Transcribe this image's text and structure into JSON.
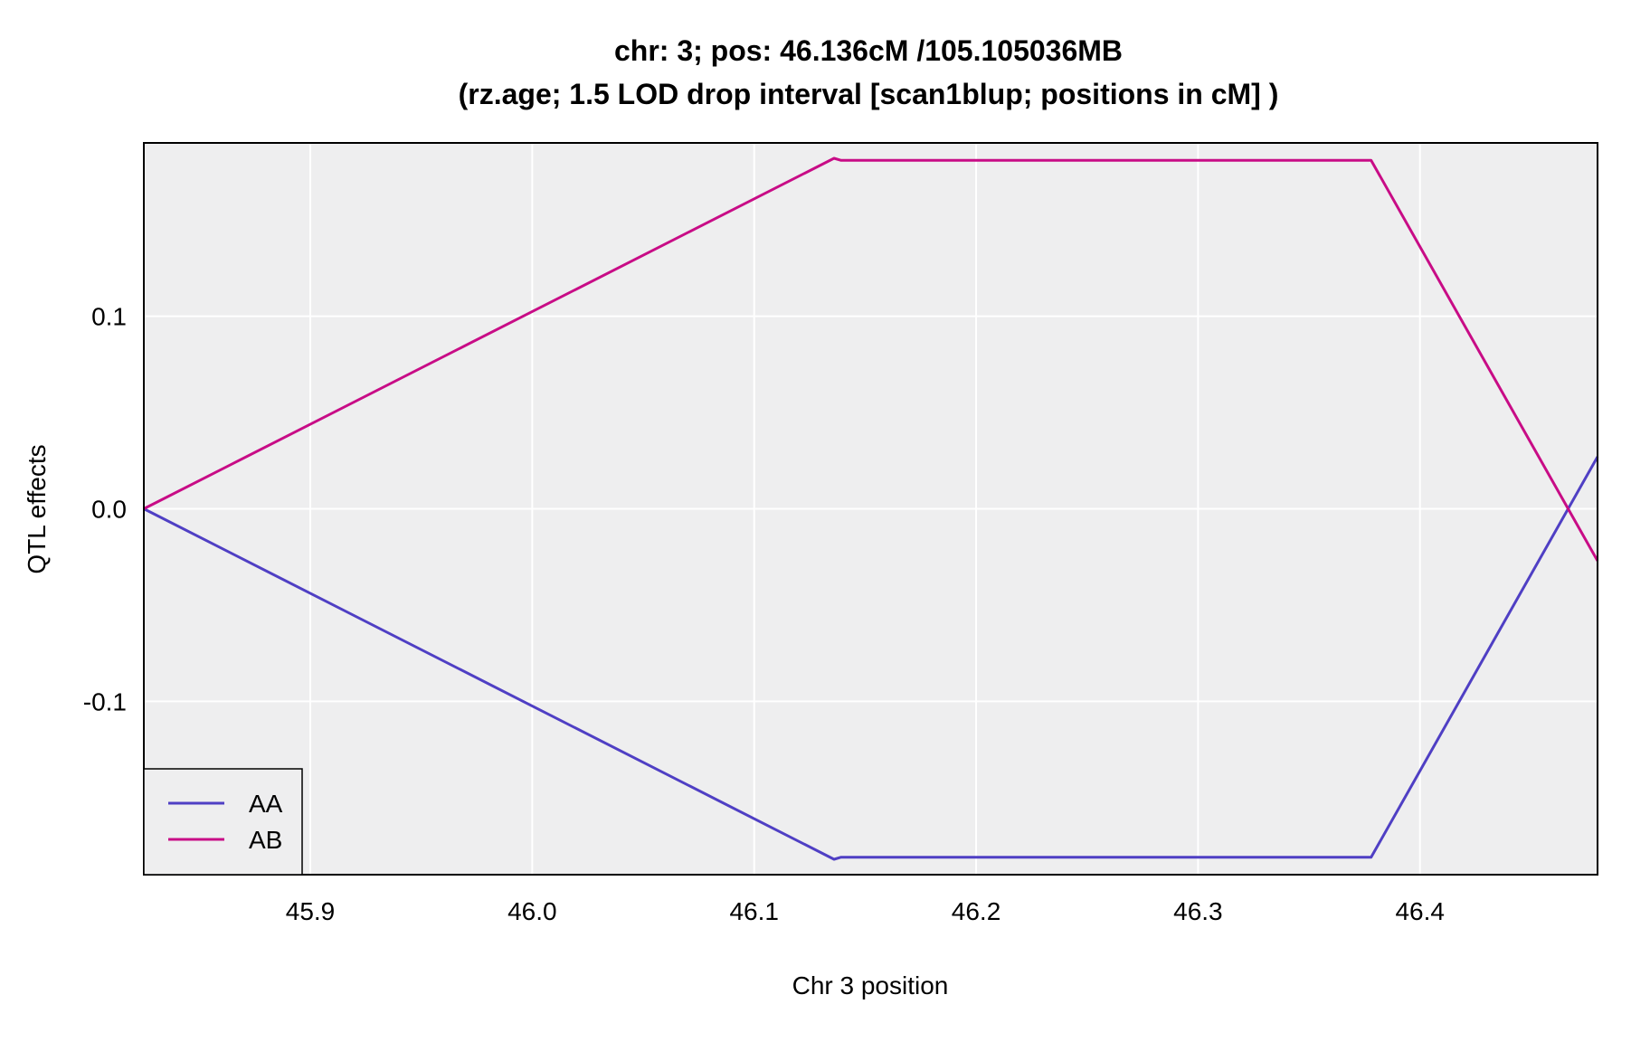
{
  "chart_data": {
    "type": "line",
    "title_line1": "chr: 3; pos: 46.136cM /105.105036MB",
    "title_line2": "(rz.age; 1.5 LOD drop interval [scan1blup; positions in cM] )",
    "xlabel": "Chr 3 position",
    "ylabel": "QTL effects",
    "xlim": [
      45.825,
      46.48
    ],
    "ylim": [
      -0.19,
      0.19
    ],
    "x_ticks": [
      45.9,
      46.0,
      46.1,
      46.2,
      46.3,
      46.4
    ],
    "x_tick_labels": [
      "45.9",
      "46.0",
      "46.1",
      "46.2",
      "46.3",
      "46.4"
    ],
    "y_ticks": [
      0.1,
      0.0,
      -0.1
    ],
    "y_tick_labels": [
      "0.1",
      "0.0",
      "-0.1"
    ],
    "grid": true,
    "legend_position": "bottom-left",
    "series": [
      {
        "name": "AA",
        "color": "#4F3FC4",
        "x": [
          45.825,
          46.136,
          46.139,
          46.378,
          46.48
        ],
        "y": [
          0.0,
          -0.182,
          -0.181,
          -0.181,
          0.027
        ]
      },
      {
        "name": "AB",
        "color": "#C80C86",
        "x": [
          45.825,
          46.136,
          46.139,
          46.378,
          46.48
        ],
        "y": [
          0.0,
          0.182,
          0.181,
          0.181,
          -0.027
        ]
      }
    ]
  },
  "colors": {
    "panel_background": "#EEEEEF",
    "grid": "#FFFFFF",
    "frame": "#000000"
  }
}
